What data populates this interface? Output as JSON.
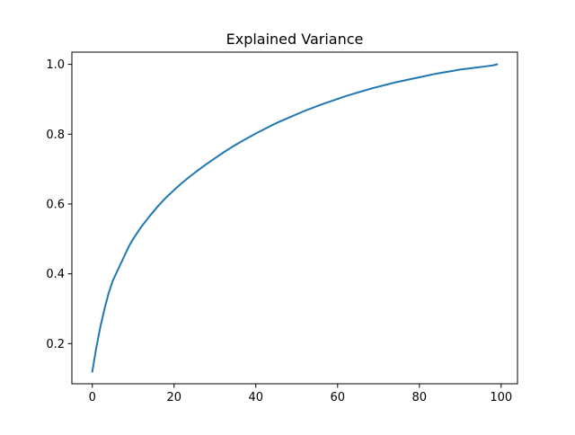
{
  "chart_data": {
    "type": "line",
    "title": "Explained Variance",
    "xlabel": "",
    "ylabel": "",
    "xlim": [
      -5,
      104
    ],
    "ylim": [
      0.085,
      1.035
    ],
    "xticks": [
      0,
      20,
      40,
      60,
      80,
      100
    ],
    "yticks": [
      0.2,
      0.4,
      0.6,
      0.8,
      1.0
    ],
    "xtick_labels": [
      "0",
      "20",
      "40",
      "60",
      "80",
      "100"
    ],
    "ytick_labels": [
      "0.2",
      "0.4",
      "0.6",
      "0.8",
      "1.0"
    ],
    "grid": false,
    "legend": "none",
    "line_color": "#1f77b4",
    "series": [
      {
        "x": [
          0,
          1,
          2,
          3,
          4,
          5,
          6,
          7,
          8,
          9,
          10,
          12,
          14,
          16,
          18,
          20,
          22,
          24,
          26,
          28,
          30,
          32,
          34,
          36,
          38,
          40,
          42,
          44,
          46,
          48,
          50,
          52,
          54,
          56,
          58,
          60,
          62,
          64,
          66,
          68,
          70,
          72,
          74,
          76,
          78,
          80,
          82,
          84,
          86,
          88,
          90,
          92,
          94,
          96,
          98,
          99
        ],
        "y": [
          0.12,
          0.19,
          0.25,
          0.3,
          0.345,
          0.38,
          0.405,
          0.43,
          0.455,
          0.48,
          0.5,
          0.535,
          0.565,
          0.593,
          0.618,
          0.64,
          0.661,
          0.68,
          0.698,
          0.715,
          0.731,
          0.747,
          0.762,
          0.776,
          0.789,
          0.802,
          0.814,
          0.826,
          0.837,
          0.847,
          0.857,
          0.867,
          0.876,
          0.885,
          0.893,
          0.901,
          0.909,
          0.916,
          0.923,
          0.93,
          0.936,
          0.942,
          0.948,
          0.953,
          0.958,
          0.963,
          0.968,
          0.973,
          0.977,
          0.981,
          0.985,
          0.988,
          0.991,
          0.994,
          0.997,
          1.0
        ]
      }
    ]
  }
}
